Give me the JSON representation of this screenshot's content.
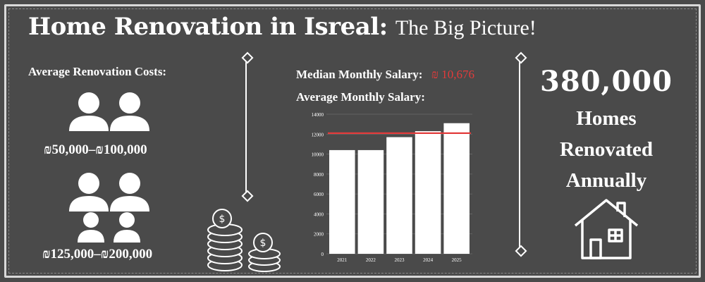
{
  "title": {
    "main": "Home Renovation in Isreal:",
    "sub": "The Big Picture!"
  },
  "costs": {
    "heading": "Average Renovation Costs:",
    "tier1_label": "₪50,000–₪100,000",
    "tier2_label": "₪125,000–₪200,000",
    "icons": [
      "two-people-icon",
      "family-of-four-icon"
    ]
  },
  "salary": {
    "median_label": "Median Monthly Salary:",
    "median_value": "₪ 10,676",
    "average_label": "Average Monthly Salary:"
  },
  "chart_data": {
    "type": "bar",
    "title": "",
    "xlabel": "",
    "ylabel": "",
    "categories": [
      "2021",
      "2022",
      "2023",
      "2024",
      "2025"
    ],
    "values": [
      10400,
      10400,
      11700,
      12300,
      13100
    ],
    "ylim": [
      0,
      14000
    ],
    "y_ticks": [
      0,
      2000,
      4000,
      6000,
      8000,
      10000,
      12000,
      14000
    ],
    "reference_line": {
      "value": 12100,
      "color": "#e23b3b"
    },
    "bar_color": "#ffffff",
    "grid": "horizontal"
  },
  "homes": {
    "number": "380,000",
    "caption": [
      "Homes",
      "Renovated",
      "Annually"
    ]
  },
  "colors": {
    "background": "#4a4a4a",
    "accent": "#e23b3b",
    "text": "#ffffff"
  }
}
